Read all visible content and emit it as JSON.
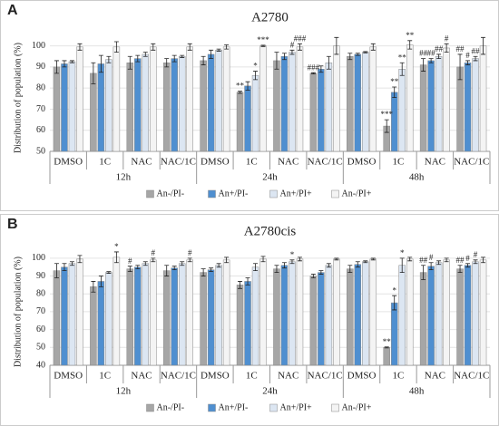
{
  "chart_data": [
    {
      "type": "bar",
      "panel_label": "A",
      "title": "A2780",
      "ylabel": "Distribution of population (%)",
      "categories": [
        "DMSO",
        "1C",
        "NAC",
        "NAC/1C",
        "DMSO",
        "1C",
        "NAC",
        "NAC/1C",
        "DMSO",
        "1C",
        "NAC",
        "NAC/1C"
      ],
      "groups": [
        "12h",
        "24h",
        "48h"
      ],
      "ylim": [
        50,
        105
      ],
      "yticks": [
        50,
        60,
        70,
        80,
        90,
        100
      ],
      "grid": true,
      "legend": "bottom",
      "series": [
        {
          "name": "An-/PI-",
          "color": "#a6a6a6",
          "values": [
            90,
            87,
            92,
            92,
            93,
            78,
            93,
            87,
            95,
            62,
            91,
            90
          ],
          "errors": [
            3,
            5,
            3,
            2,
            2,
            0.5,
            4,
            0.3,
            1.5,
            3,
            3,
            6
          ]
        },
        {
          "name": "An+/PI-",
          "color": "#4f8fd0",
          "values": [
            91.5,
            91.5,
            94,
            94,
            96,
            81,
            95,
            89,
            96,
            78,
            93,
            92
          ],
          "errors": [
            1.5,
            4,
            1.5,
            1.5,
            2,
            2,
            1.5,
            1.5,
            0.5,
            2.5,
            1,
            1
          ]
        },
        {
          "name": "An+/PI+",
          "color": "#dce6f2",
          "values": [
            92.5,
            93.5,
            96,
            95,
            98,
            86,
            97,
            92,
            97,
            89,
            95,
            94
          ],
          "errors": [
            0.5,
            1.5,
            1,
            0.5,
            0.5,
            2,
            1,
            3,
            0.3,
            3,
            1,
            1
          ]
        },
        {
          "name": "An-/PI+",
          "color": "#f4f4f4",
          "values": [
            99.5,
            99.5,
            99.5,
            99.5,
            99.5,
            100,
            99.5,
            100,
            99.5,
            100.5,
            99,
            100
          ],
          "errors": [
            1.5,
            2.5,
            1.5,
            1.5,
            1,
            0.3,
            1.5,
            4,
            1.5,
            2,
            2,
            4
          ]
        }
      ],
      "annotations": [
        {
          "text": "**",
          "category": 5,
          "series": 0
        },
        {
          "text": "*",
          "category": 5,
          "series": 2
        },
        {
          "text": "***",
          "category": 5,
          "series": 3
        },
        {
          "text": "#",
          "category": 6,
          "series": 2
        },
        {
          "text": "###",
          "category": 6,
          "series": 3
        },
        {
          "text": "###",
          "category": 7,
          "series": 0
        },
        {
          "text": "***",
          "category": 9,
          "series": 0
        },
        {
          "text": "**",
          "category": 9,
          "series": 1
        },
        {
          "text": "**",
          "category": 9,
          "series": 2
        },
        {
          "text": "**",
          "category": 9,
          "series": 3
        },
        {
          "text": "##",
          "category": 10,
          "series": 0
        },
        {
          "text": "##",
          "category": 10,
          "series": 1
        },
        {
          "text": "##",
          "category": 10,
          "series": 2
        },
        {
          "text": "#",
          "category": 10,
          "series": 3
        },
        {
          "text": "##",
          "category": 11,
          "series": 0
        },
        {
          "text": "#",
          "category": 11,
          "series": 1
        },
        {
          "text": "##",
          "category": 11,
          "series": 2
        }
      ]
    },
    {
      "type": "bar",
      "panel_label": "B",
      "title": "A2780cis",
      "ylabel": "Distribution of population (%)",
      "categories": [
        "DMSO",
        "1C",
        "NAC",
        "NAC/1C",
        "DMSO",
        "1C",
        "NAC",
        "NAC/1C",
        "DMSO",
        "1C",
        "NAC",
        "NAC/1C"
      ],
      "groups": [
        "12h",
        "24h",
        "48h"
      ],
      "ylim": [
        40,
        105
      ],
      "yticks": [
        40,
        50,
        60,
        70,
        80,
        90,
        100
      ],
      "grid": true,
      "legend": "bottom",
      "series": [
        {
          "name": "An-/PI-",
          "color": "#a6a6a6",
          "values": [
            93,
            84,
            94,
            93,
            92,
            85,
            94,
            90,
            94,
            50,
            92,
            94
          ],
          "errors": [
            4,
            3,
            1.5,
            3,
            2,
            2,
            2,
            1,
            2,
            0.3,
            4,
            2
          ]
        },
        {
          "name": "An+/PI-",
          "color": "#4f8fd0",
          "values": [
            95,
            87,
            95,
            94.5,
            93.5,
            87,
            96,
            92,
            96.5,
            75,
            95.5,
            96
          ],
          "errors": [
            2,
            3,
            1,
            1,
            1,
            2,
            1.5,
            1,
            1.5,
            4,
            2,
            1
          ]
        },
        {
          "name": "An+/PI+",
          "color": "#dce6f2",
          "values": [
            97,
            92,
            97,
            97,
            96,
            95,
            98,
            96,
            98,
            96,
            97.5,
            98
          ],
          "errors": [
            1,
            0.5,
            1,
            1,
            1,
            2,
            1,
            1,
            0.5,
            4,
            1,
            1
          ]
        },
        {
          "name": "An-/PI+",
          "color": "#f4f4f4",
          "values": [
            99.5,
            100.5,
            99,
            99,
            99,
            99.5,
            99.5,
            99.5,
            99.5,
            99.5,
            99,
            99
          ],
          "errors": [
            2,
            3,
            1,
            1,
            1.5,
            1.5,
            1,
            0.5,
            0.5,
            1,
            1,
            1.5
          ]
        }
      ],
      "annotations": [
        {
          "text": "*",
          "category": 1,
          "series": 3
        },
        {
          "text": "#",
          "category": 2,
          "series": 0
        },
        {
          "text": "#",
          "category": 2,
          "series": 3
        },
        {
          "text": "#",
          "category": 3,
          "series": 3
        },
        {
          "text": "*",
          "category": 6,
          "series": 2
        },
        {
          "text": "**",
          "category": 9,
          "series": 0
        },
        {
          "text": "*",
          "category": 9,
          "series": 1
        },
        {
          "text": "*",
          "category": 9,
          "series": 2
        },
        {
          "text": "##",
          "category": 10,
          "series": 0
        },
        {
          "text": "#",
          "category": 10,
          "series": 1
        },
        {
          "text": "##",
          "category": 11,
          "series": 0
        },
        {
          "text": "#",
          "category": 11,
          "series": 1
        },
        {
          "text": "#",
          "category": 11,
          "series": 2
        }
      ]
    }
  ]
}
